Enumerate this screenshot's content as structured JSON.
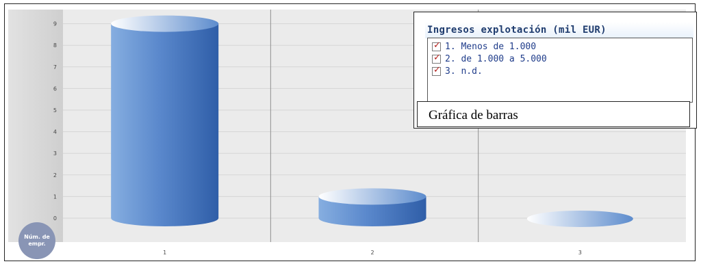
{
  "chart_data": {
    "type": "bar",
    "categories": [
      "1",
      "2",
      "3"
    ],
    "values": [
      9,
      1,
      0
    ],
    "ylim": [
      0,
      9
    ],
    "yticks": [
      0,
      1,
      2,
      3,
      4,
      5,
      6,
      7,
      8,
      9
    ],
    "ylabel": "Núm. de\nempr.",
    "legend": {
      "title": "Ingresos explotación (mil EUR)",
      "items": [
        "1. Menos de 1.000",
        "2. de 1.000 a 5.000",
        "3. n.d."
      ],
      "placement": "top-right"
    },
    "grid": true,
    "colors": {
      "bar": "#4f7fc4",
      "bar_dark": "#2f5ea8",
      "bar_light": "#c9dbf1",
      "plot_bg": "#e9e9e9"
    }
  },
  "caption": "Gráfica de barras"
}
